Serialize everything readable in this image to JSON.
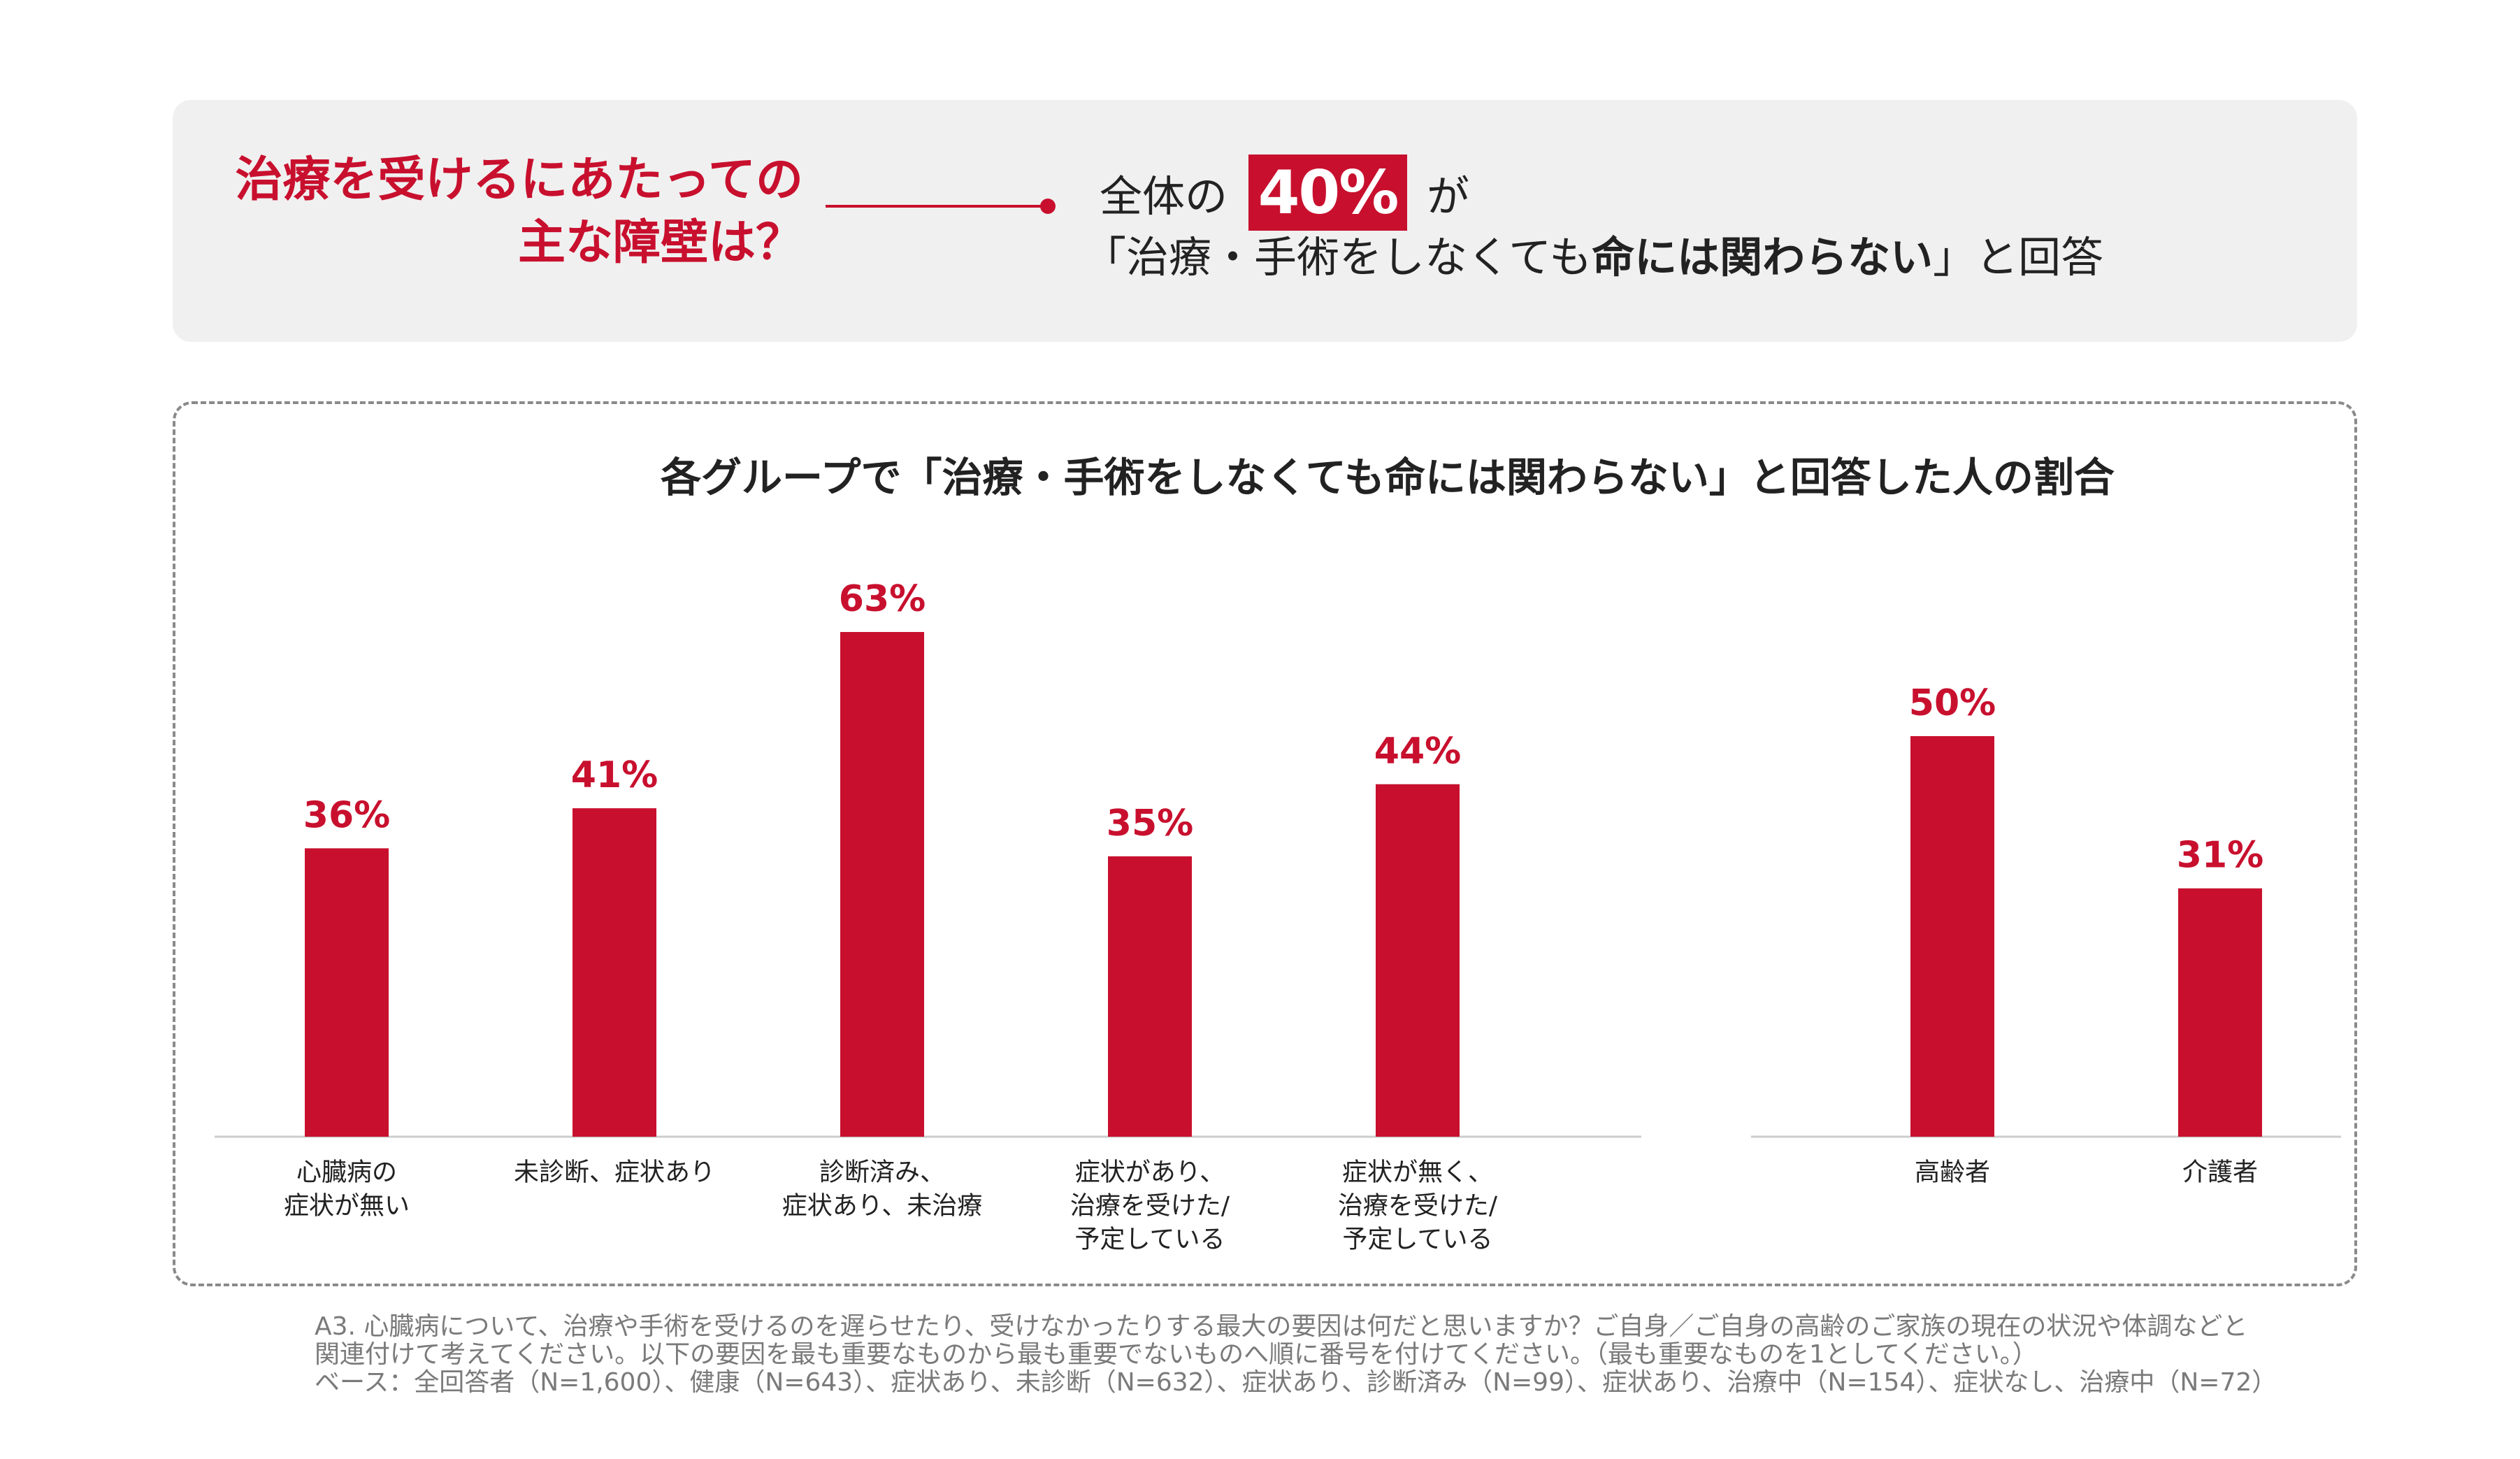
{
  "question": {
    "line1": "治療を受けるにあたっての",
    "line2": "主な障壁は？"
  },
  "headline": {
    "prefix": "全体の",
    "percent": "40%",
    "suffix": "が",
    "line2_pre": "「治療・手術をしなくても",
    "line2_bold": "命には関わらない",
    "line2_post": "」と回答"
  },
  "colors": {
    "accent": "#c8102e",
    "panel_bg": "#f0f0f0",
    "text": "#222222",
    "note": "#7a7a7a",
    "axis": "#cccccc"
  },
  "chart_data": {
    "type": "bar",
    "title": "各グループで「治療・手術をしなくても命には関わらない」と回答した人の割合",
    "unit": "%",
    "ylim": [
      0,
      100
    ],
    "groups": [
      {
        "categories": [
          [
            "心臓病の",
            "症状が無い"
          ],
          [
            "未診断、症状あり"
          ],
          [
            "診断済み、",
            "症状あり、未治療"
          ],
          [
            "症状があり、",
            "治療を受けた/",
            "予定している"
          ],
          [
            "症状が無く、",
            "治療を受けた/",
            "予定している"
          ]
        ],
        "values": [
          36,
          41,
          63,
          35,
          44
        ]
      },
      {
        "categories": [
          [
            "高齢者"
          ],
          [
            "介護者"
          ]
        ],
        "values": [
          50,
          31
        ]
      }
    ]
  },
  "note": {
    "lines": [
      "A3. 心臓病について、治療や手術を受けるのを遅らせたり、受けなかったりする最大の要因は何だと思いますか？ご自身／ご自身の高齢のご家族の現在の状況や体調などと",
      "関連付けて考えてください。以下の要因を最も重要なものから最も重要でないものへ順に番号を付けてください。（最も重要なものを1としてください。）",
      "ベース：全回答者（N=1,600）、健康（N=643）、症状あり、未診断（N=632）、症状あり、診断済み（N=99）、症状あり、治療中（N=154）、症状なし、治療中（N=72）"
    ]
  }
}
